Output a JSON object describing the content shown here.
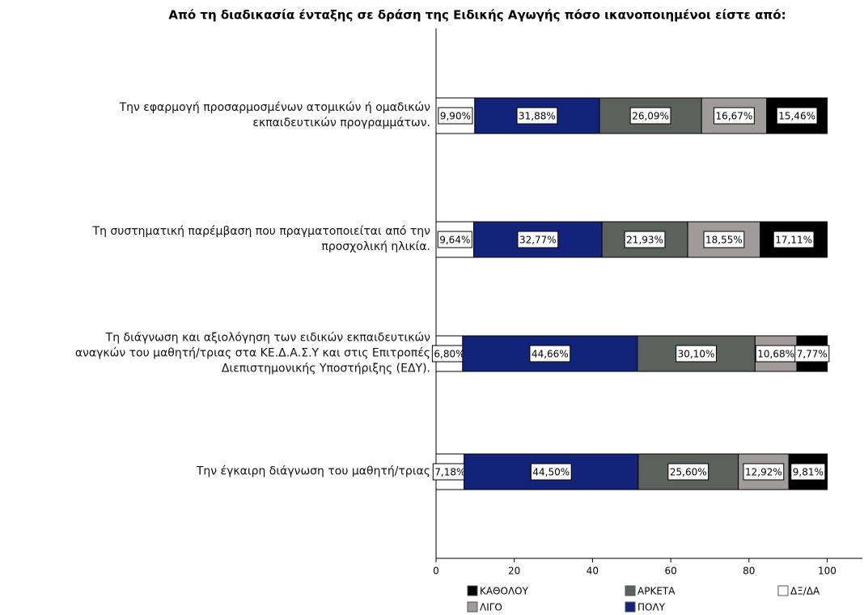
{
  "chart_data": {
    "type": "stacked_barh",
    "title": "Από τη διαδικασία ένταξης σε δράση της Ειδικής Αγωγής πόσο ικανοποιημένοι είστε από:",
    "categories": [
      "Την εφαρμογή προσαρμοσμένων ατομικών ή ομαδικών\nεκπαιδευτικών προγραμμάτων.",
      "Τη συστηματική παρέμβαση που πραγματοποιείται από την\nπροσχολική ηλικία.",
      "Τη διάγνωση και αξιολόγηση των ειδικών εκπαιδευτικών\nαναγκών του μαθητή/τριας στα ΚΕ.Δ.Α.Σ.Υ και στις Επιτροπές\nΔιεπιστημονικής Υποστήριξης (ΕΔΥ).",
      "Την έγκαιρη διάγνωση του μαθητή/τριας"
    ],
    "series": [
      {
        "name": "ΔΞ/ΔΑ",
        "color": "#ffffff",
        "values": [
          9.9,
          9.64,
          6.8,
          7.18
        ],
        "value_labels": [
          "9,90%",
          "9,64%",
          "6,80%",
          "7,18%"
        ]
      },
      {
        "name": "ΠΟΛΥ",
        "color": "#14237a",
        "values": [
          31.88,
          32.77,
          44.66,
          44.5
        ],
        "value_labels": [
          "31,88%",
          "32,77%",
          "44,66%",
          "44,50%"
        ]
      },
      {
        "name": "ΑΡΚΕΤΑ",
        "color": "#5b625e",
        "values": [
          26.09,
          21.93,
          30.1,
          25.6
        ],
        "value_labels": [
          "26,09%",
          "21,93%",
          "30,10%",
          "25,60%"
        ]
      },
      {
        "name": "ΛΙΓΟ",
        "color": "#9f9b9b",
        "values": [
          16.67,
          18.55,
          10.68,
          12.92
        ],
        "value_labels": [
          "16,67%",
          "18,55%",
          "10,68%",
          "12,92%"
        ]
      },
      {
        "name": "ΚΑΘΟΛΟΥ",
        "color": "#000000",
        "values": [
          15.46,
          17.11,
          7.77,
          9.81
        ],
        "value_labels": [
          "15,46%",
          "17,11%",
          "7,77%",
          "9,81%"
        ]
      }
    ],
    "xlim": [
      0,
      109
    ],
    "xticks": [
      0,
      20,
      40,
      60,
      80,
      100
    ]
  }
}
